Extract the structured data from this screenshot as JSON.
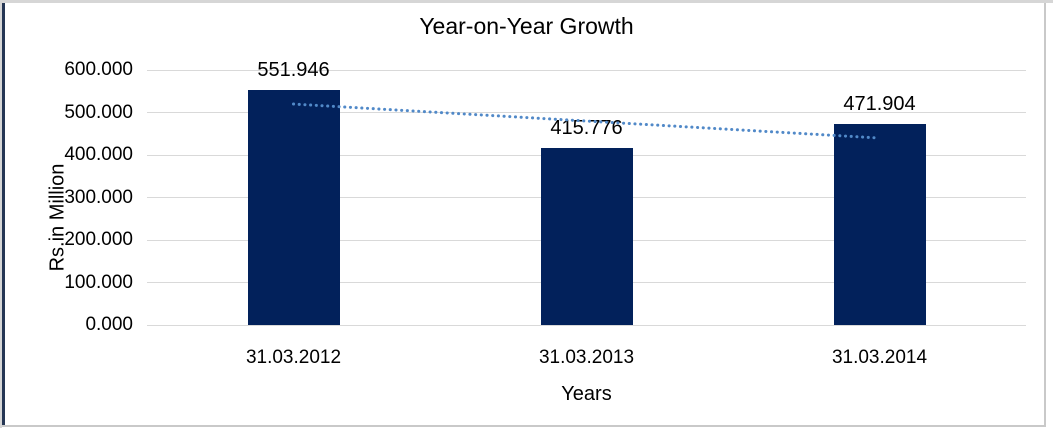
{
  "frame": {
    "navy_border_color": "#253654",
    "gray_border_color": "#d6d6d6"
  },
  "chart_data": {
    "type": "bar",
    "title": "Year-on-Year Growth",
    "xlabel": "Years",
    "ylabel": "Rs.in Million",
    "categories": [
      "31.03.2012",
      "31.03.2013",
      "31.03.2014"
    ],
    "values": [
      551.946,
      415.776,
      471.904
    ],
    "value_labels": [
      "551.946",
      "415.776",
      "471.904"
    ],
    "ylim": [
      0,
      600
    ],
    "ytick_step": 100,
    "ytick_labels": [
      "0.000",
      "100.000",
      "200.000",
      "300.000",
      "400.000",
      "500.000",
      "600.000"
    ],
    "grid": true,
    "legend": "none",
    "bar_color": "#02215b",
    "gridline_color": "#d9d9d9",
    "text_color": "#000000",
    "trendline": {
      "type": "linear",
      "style": "dotted",
      "color": "#5189c8",
      "start_value": 519.9,
      "end_value": 439.9
    }
  }
}
